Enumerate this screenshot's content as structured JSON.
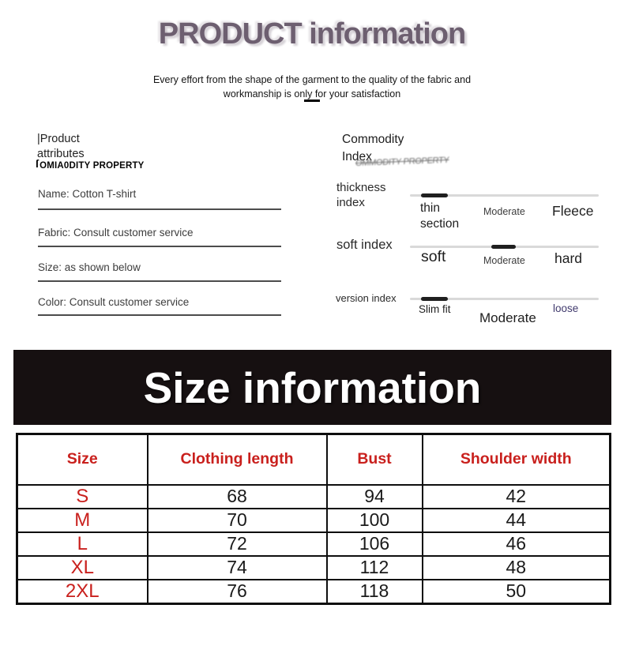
{
  "header": {
    "title": "PRODUCT information",
    "subtitle_line1": "Every effort from the shape of the garment to the quality of the fabric and",
    "subtitle_line2": "workmanship is only for your satisfaction"
  },
  "product_attributes": {
    "heading_line1": "|Product",
    "heading_line2": "attributes",
    "subheading_mark": "ſ",
    "subheading": "OMIA0DITY PROPERTY",
    "items": [
      {
        "text": "Name: Cotton T-shirt"
      },
      {
        "text": "Fabric: Consult customer service"
      },
      {
        "text": "Size: as shown below"
      },
      {
        "text": "Color: Consult customer service"
      }
    ]
  },
  "commodity_index": {
    "heading_line1": "Commodity",
    "heading_line2": "Index",
    "ghost_text": "OMMODITY PROPERTY",
    "rows": [
      {
        "label": "thickness index",
        "scale_left": "thin section",
        "scale_mid": "Moderate",
        "scale_right": "Fleece",
        "seg_start_pct": 6,
        "seg_width_pct": 14
      },
      {
        "label": "soft index",
        "scale_left": "soft",
        "scale_mid": "Moderate",
        "scale_right": "hard",
        "seg_start_pct": 43,
        "seg_width_pct": 13
      },
      {
        "label": "version index",
        "scale_left": "Slim fit",
        "scale_mid": "Moderate",
        "scale_right": "loose",
        "seg_start_pct": 6,
        "seg_width_pct": 14
      }
    ]
  },
  "size_banner": {
    "title": "Size information"
  },
  "size_table": {
    "headers": [
      "Size",
      "Clothing length",
      "Bust",
      "Shoulder width"
    ],
    "rows": [
      {
        "size": "S",
        "clothing_length": "68",
        "bust": "94",
        "shoulder_width": "42"
      },
      {
        "size": "M",
        "clothing_length": "70",
        "bust": "100",
        "shoulder_width": "44"
      },
      {
        "size": "L",
        "clothing_length": "72",
        "bust": "106",
        "shoulder_width": "46"
      },
      {
        "size": "XL",
        "clothing_length": "74",
        "bust": "112",
        "shoulder_width": "48"
      },
      {
        "size": "2XL",
        "clothing_length": "76",
        "bust": "118",
        "shoulder_width": "50"
      }
    ]
  },
  "colors": {
    "title": "#6d5f70",
    "table_accent_red": "#c9201d",
    "banner_bg": "#161011",
    "slider_track": "#d9d9d9",
    "slider_segment": "#1f1f1f",
    "loose_label": "#403a6d"
  }
}
